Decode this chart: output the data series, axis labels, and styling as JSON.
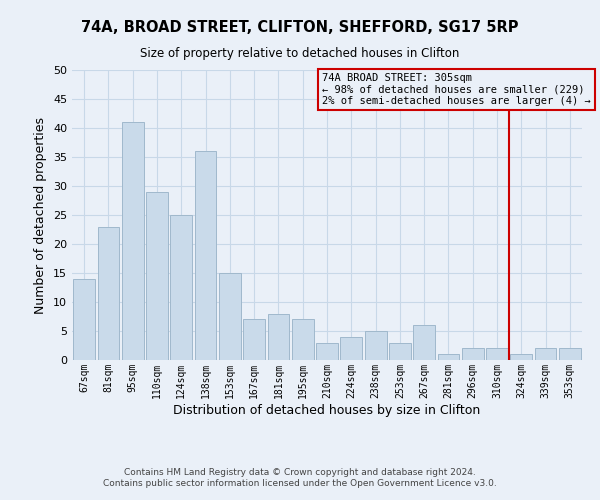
{
  "title": "74A, BROAD STREET, CLIFTON, SHEFFORD, SG17 5RP",
  "subtitle": "Size of property relative to detached houses in Clifton",
  "xlabel": "Distribution of detached houses by size in Clifton",
  "ylabel": "Number of detached properties",
  "footer_lines": [
    "Contains HM Land Registry data © Crown copyright and database right 2024.",
    "Contains public sector information licensed under the Open Government Licence v3.0."
  ],
  "categories": [
    "67sqm",
    "81sqm",
    "95sqm",
    "110sqm",
    "124sqm",
    "138sqm",
    "153sqm",
    "167sqm",
    "181sqm",
    "195sqm",
    "210sqm",
    "224sqm",
    "238sqm",
    "253sqm",
    "267sqm",
    "281sqm",
    "296sqm",
    "310sqm",
    "324sqm",
    "339sqm",
    "353sqm"
  ],
  "values": [
    14,
    23,
    41,
    29,
    25,
    36,
    15,
    7,
    8,
    7,
    3,
    4,
    5,
    3,
    6,
    1,
    2,
    2,
    1,
    2,
    2
  ],
  "bar_color": "#c9daea",
  "bar_edge_color": "#a0b8cc",
  "grid_color": "#c8d8e8",
  "background_color": "#eaf0f8",
  "vline_x_index": 17.5,
  "vline_color": "#cc0000",
  "annotation_title": "74A BROAD STREET: 305sqm",
  "annotation_line1": "← 98% of detached houses are smaller (229)",
  "annotation_line2": "2% of semi-detached houses are larger (4) →",
  "annotation_border_color": "#cc0000",
  "ylim": [
    0,
    50
  ],
  "yticks": [
    0,
    5,
    10,
    15,
    20,
    25,
    30,
    35,
    40,
    45,
    50
  ]
}
